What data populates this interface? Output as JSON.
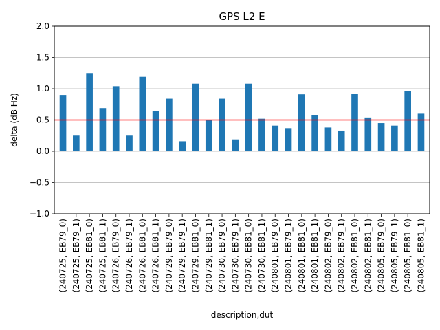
{
  "chart_data": {
    "type": "bar",
    "title": "GPS L2 E",
    "xlabel": "description,dut",
    "ylabel": "delta (dB Hz)",
    "ylim": [
      -1.0,
      2.0
    ],
    "yticks": [
      -1.0,
      -0.5,
      0.0,
      0.5,
      1.0,
      1.5,
      2.0
    ],
    "ytick_labels": [
      "−1.0",
      "−0.5",
      "0.0",
      "0.5",
      "1.0",
      "1.5",
      "2.0"
    ],
    "grid": "horizontal",
    "legend": "none",
    "bar_color": "#1f77b4",
    "reference_line": {
      "value": 0.5,
      "color": "#ff0000"
    },
    "categories": [
      "(240725, EB79_0)",
      "(240725, EB79_1)",
      "(240725, EB81_0)",
      "(240725, EB81_1)",
      "(240726, EB79_0)",
      "(240726, EB79_1)",
      "(240726, EB81_0)",
      "(240726, EB81_1)",
      "(240729, EB79_0)",
      "(240729, EB79_1)",
      "(240729, EB81_0)",
      "(240729, EB81_1)",
      "(240730, EB79_0)",
      "(240730, EB79_1)",
      "(240730, EB81_0)",
      "(240730, EB81_1)",
      "(240801, EB79_0)",
      "(240801, EB79_1)",
      "(240801, EB81_0)",
      "(240801, EB81_1)",
      "(240802, EB79_0)",
      "(240802, EB79_1)",
      "(240802, EB81_0)",
      "(240802, EB81_1)",
      "(240805, EB79_0)",
      "(240805, EB79_1)",
      "(240805, EB81_0)",
      "(240805, EB81_1)"
    ],
    "values": [
      0.9,
      0.25,
      1.25,
      0.69,
      1.04,
      0.25,
      1.19,
      0.64,
      0.84,
      0.16,
      1.08,
      0.5,
      0.84,
      0.19,
      1.08,
      0.52,
      0.41,
      0.37,
      0.91,
      0.58,
      0.38,
      0.33,
      0.92,
      0.54,
      0.45,
      0.41,
      0.96,
      0.6
    ]
  }
}
